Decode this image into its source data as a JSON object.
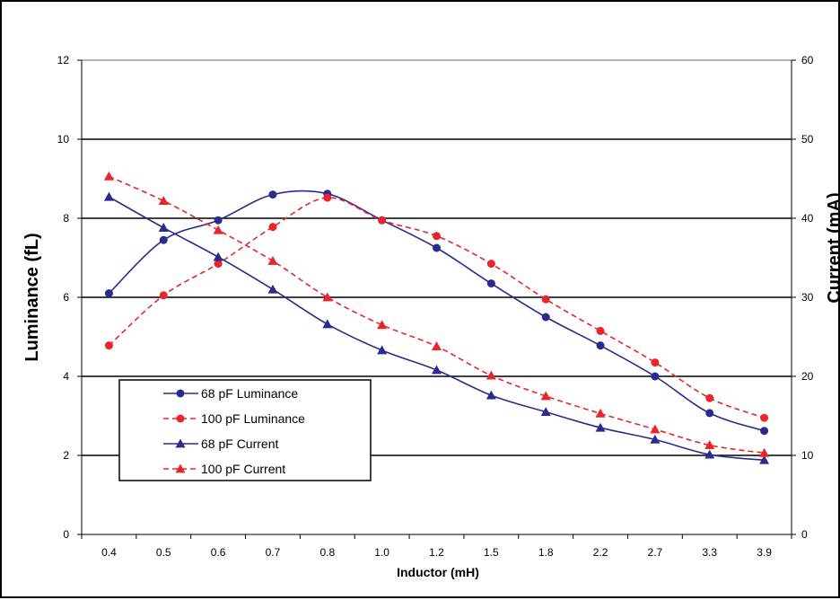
{
  "chart_data": {
    "type": "line",
    "title": "",
    "xlabel": "Inductor (mH)",
    "ylabel": "Luminance (fL)",
    "y2label": "Current (mA)",
    "categories": [
      "0.4",
      "0.5",
      "0.6",
      "0.7",
      "0.8",
      "1.0",
      "1.2",
      "1.5",
      "1.8",
      "2.2",
      "2.7",
      "3.3",
      "3.9"
    ],
    "ylim": [
      0,
      12
    ],
    "yticks": [
      0,
      2,
      4,
      6,
      8,
      10,
      12
    ],
    "y2lim": [
      0,
      60
    ],
    "y2ticks": [
      0,
      10,
      20,
      30,
      40,
      50,
      60
    ],
    "grid": true,
    "legend_position": "bottom-left",
    "series": [
      {
        "name": "68 pF  Luminance",
        "axis": "left",
        "color": "#2b2b8f",
        "dashed": false,
        "marker": "circle",
        "values": [
          6.1,
          7.45,
          7.95,
          8.6,
          8.62,
          7.95,
          7.25,
          6.35,
          5.5,
          4.78,
          4.0,
          3.07,
          2.62
        ]
      },
      {
        "name": "100 pF  Luminance",
        "axis": "left",
        "color": "#e8252a",
        "dashed": true,
        "marker": "circle",
        "values": [
          4.78,
          6.05,
          6.85,
          7.78,
          8.52,
          7.95,
          7.55,
          6.85,
          5.95,
          5.15,
          4.35,
          3.45,
          2.95
        ]
      },
      {
        "name": "68 pF  Current",
        "axis": "right",
        "color": "#2b2b8f",
        "dashed": false,
        "marker": "triangle",
        "values": [
          42.7,
          38.8,
          35.1,
          31.0,
          26.6,
          23.3,
          20.8,
          17.6,
          15.5,
          13.5,
          12.0,
          10.1,
          9.4
        ]
      },
      {
        "name": "100 pF  Current",
        "axis": "right",
        "color": "#e8252a",
        "dashed": true,
        "marker": "triangle",
        "values": [
          45.3,
          42.2,
          38.5,
          34.6,
          30.0,
          26.5,
          23.8,
          20.1,
          17.5,
          15.3,
          13.3,
          11.3,
          10.3
        ]
      }
    ]
  }
}
